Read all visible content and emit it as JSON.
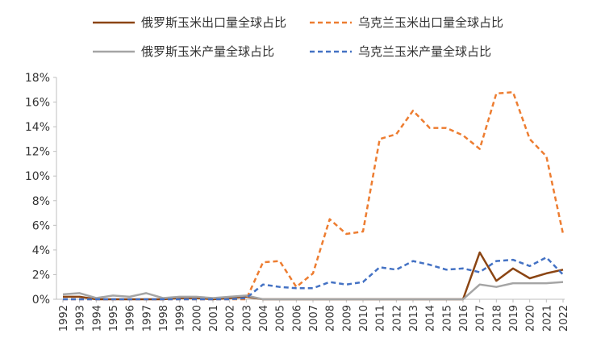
{
  "chart_data": {
    "type": "line",
    "title": "",
    "xlabel": "",
    "ylabel": "",
    "ylim": [
      0,
      18
    ],
    "y_unit": "%",
    "yticks": [
      0,
      2,
      4,
      6,
      8,
      10,
      12,
      14,
      16,
      18
    ],
    "ytick_labels": [
      "0%",
      "2%",
      "4%",
      "6%",
      "8%",
      "10%",
      "12%",
      "14%",
      "16%",
      "18%"
    ],
    "grid": false,
    "legend_position": "top",
    "categories": [
      "1992",
      "1993",
      "1994",
      "1995",
      "1996",
      "1997",
      "1998",
      "1999",
      "2000",
      "2001",
      "2002",
      "2003",
      "2004",
      "2005",
      "2006",
      "2007",
      "2008",
      "2009",
      "2010",
      "2011",
      "2012",
      "2013",
      "2014",
      "2015",
      "2016",
      "2017",
      "2018",
      "2019",
      "2020",
      "2021",
      "2022"
    ],
    "series": [
      {
        "name": "俄罗斯玉米出口量全球占比",
        "color": "#8B4513",
        "dash": "solid",
        "values": [
          0.2,
          0.2,
          0.0,
          0.0,
          0.0,
          0.0,
          0.0,
          0.1,
          0.1,
          0.0,
          0.1,
          0.2,
          0.0,
          0.0,
          0.0,
          0.0,
          0.0,
          0.0,
          0.0,
          0.0,
          0.0,
          0.0,
          0.0,
          0.0,
          0.0,
          3.8,
          1.5,
          2.5,
          1.7,
          2.1,
          2.4
        ]
      },
      {
        "name": "乌克兰玉米出口量全球占比",
        "color": "#ED7D31",
        "dash": "dashed",
        "values": [
          0.0,
          0.0,
          0.0,
          0.0,
          0.0,
          0.0,
          0.0,
          0.0,
          0.0,
          0.0,
          0.0,
          0.0,
          3.0,
          3.1,
          1.0,
          2.1,
          6.5,
          5.3,
          5.5,
          13.0,
          13.4,
          15.3,
          13.9,
          13.9,
          13.3,
          12.2,
          16.7,
          16.8,
          13.0,
          11.6,
          5.3
        ]
      },
      {
        "name": "俄罗斯玉米产量全球占比",
        "color": "#A5A5A5",
        "dash": "solid",
        "values": [
          0.4,
          0.5,
          0.1,
          0.3,
          0.2,
          0.5,
          0.1,
          0.2,
          0.2,
          0.1,
          0.2,
          0.3,
          0.0,
          0.0,
          0.0,
          0.0,
          0.0,
          0.0,
          0.0,
          0.0,
          0.0,
          0.0,
          0.0,
          0.0,
          0.0,
          1.2,
          1.0,
          1.3,
          1.3,
          1.3,
          1.4
        ]
      },
      {
        "name": "乌克兰玉米产量全球占比",
        "color": "#4472C4",
        "dash": "dashed",
        "values": [
          0.0,
          0.0,
          0.0,
          0.0,
          0.0,
          0.0,
          0.0,
          0.0,
          0.0,
          0.0,
          0.0,
          0.1,
          1.2,
          1.0,
          0.9,
          0.9,
          1.4,
          1.2,
          1.4,
          2.6,
          2.4,
          3.1,
          2.8,
          2.4,
          2.5,
          2.2,
          3.1,
          3.2,
          2.7,
          3.4,
          2.0
        ]
      }
    ]
  }
}
